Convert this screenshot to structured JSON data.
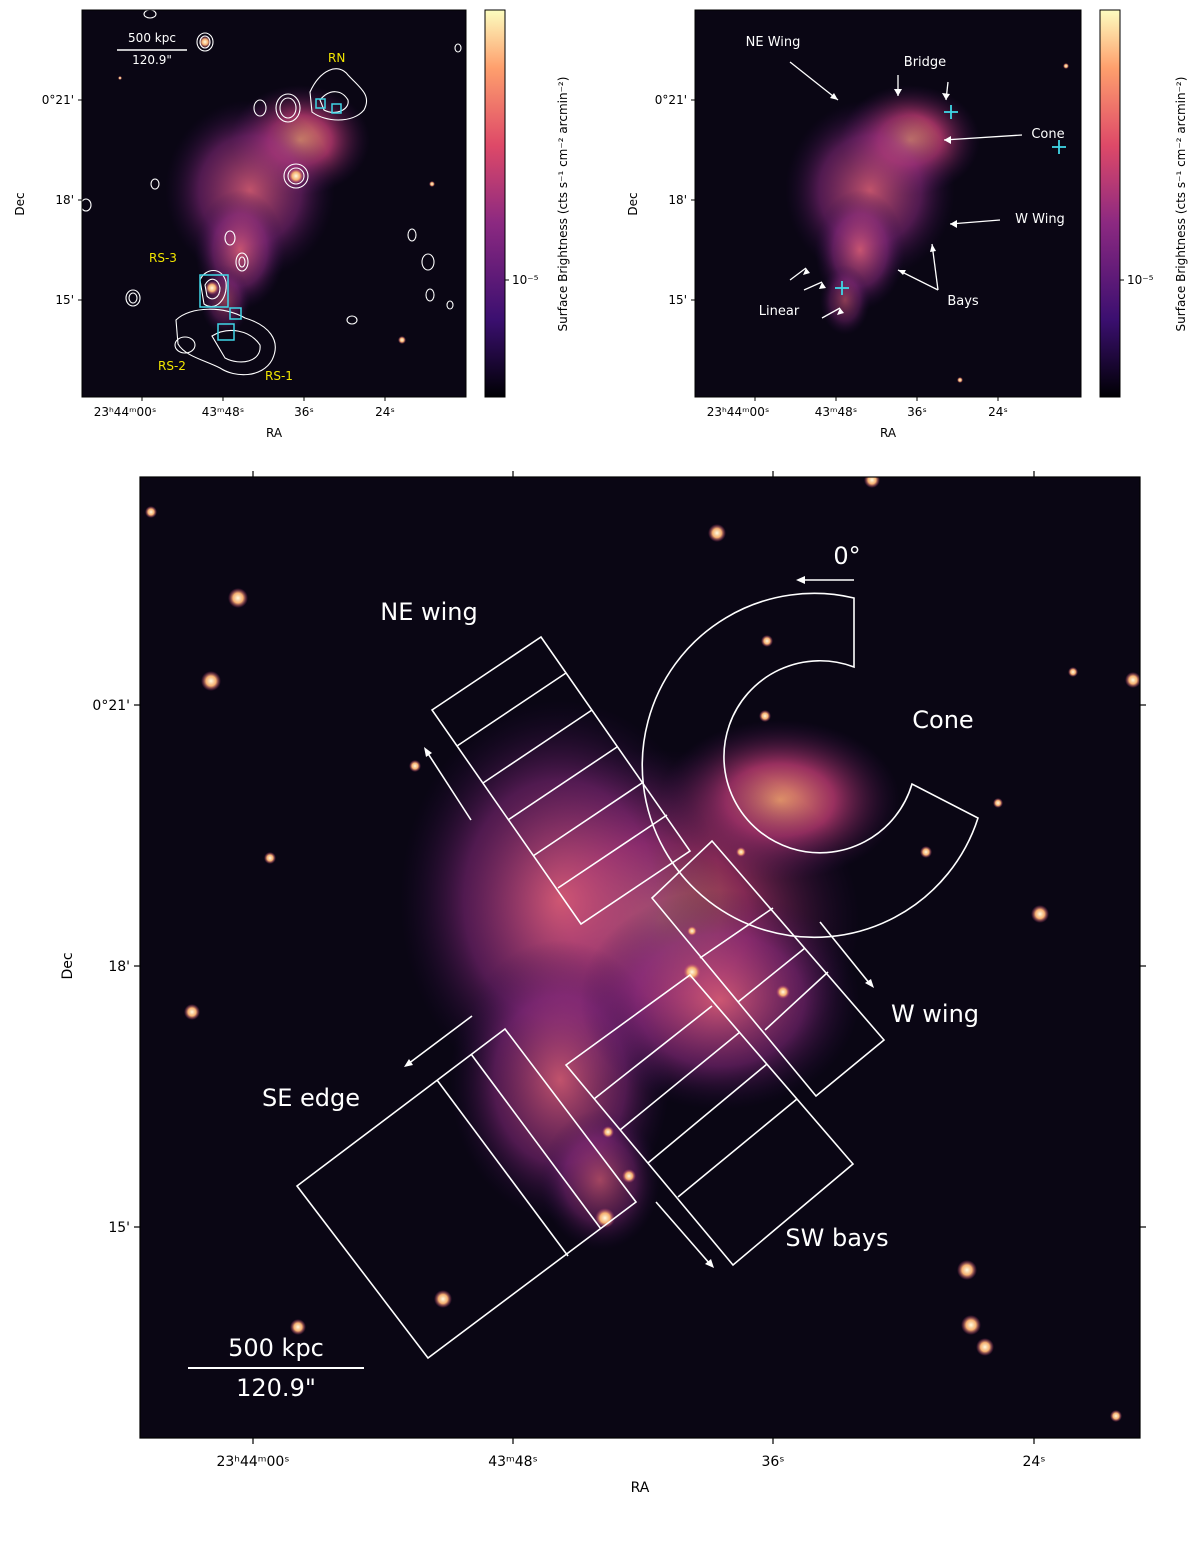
{
  "top_left": {
    "scalebar_kpc": "500 kpc",
    "scalebar_arcsec": "120.9\"",
    "labels": {
      "rn": "RN",
      "rs1": "RS-1",
      "rs2": "RS-2",
      "rs3": "RS-3"
    },
    "y_ticks": [
      "0°21'",
      "18'",
      "15'"
    ],
    "x_ticks": [
      "23ʰ44ᵐ00ˢ",
      "43ᵐ48ˢ",
      "36ˢ",
      "24ˢ"
    ],
    "xlabel": "RA",
    "ylabel": "Dec",
    "colorbar_label": "Surface Brightness (cts s⁻¹ cm⁻² arcmin⁻²)",
    "colorbar_tick": "10⁻⁵"
  },
  "top_right": {
    "annotations": {
      "ne_wing": "NE Wing",
      "bridge": "Bridge",
      "cone": "Cone",
      "w_wing": "W Wing",
      "bays": "Bays",
      "linear": "Linear"
    },
    "y_ticks": [
      "0°21'",
      "18'",
      "15'"
    ],
    "x_ticks": [
      "23ʰ44ᵐ00ˢ",
      "43ᵐ48ˢ",
      "36ˢ",
      "24ˢ"
    ],
    "xlabel": "RA",
    "ylabel": "Dec",
    "colorbar_label": "Surface Brightness (cts s⁻¹ cm⁻² arcmin⁻²)",
    "colorbar_tick": "10⁻⁵"
  },
  "bottom": {
    "regions": {
      "ne_wing": "NE wing",
      "cone": "Cone",
      "w_wing": "W wing",
      "se_edge": "SE edge",
      "sw_bays": "SW bays",
      "angle": "0°"
    },
    "scalebar_kpc": "500 kpc",
    "scalebar_arcsec": "120.9\"",
    "y_ticks": [
      "0°21'",
      "18'",
      "15'"
    ],
    "x_ticks": [
      "23ʰ44ᵐ00ˢ",
      "43ᵐ48ˢ",
      "36ˢ",
      "24ˢ"
    ],
    "xlabel": "RA",
    "ylabel": "Dec"
  },
  "colors": {
    "background": "#0a0614",
    "emission_core": "#f7a070",
    "emission_mid": "#c8407a",
    "emission_outer": "#5a1a6e",
    "annotation_yellow": "#f2e600",
    "marker_cyan": "#3fd6e6",
    "overlay_white": "#ffffff"
  }
}
